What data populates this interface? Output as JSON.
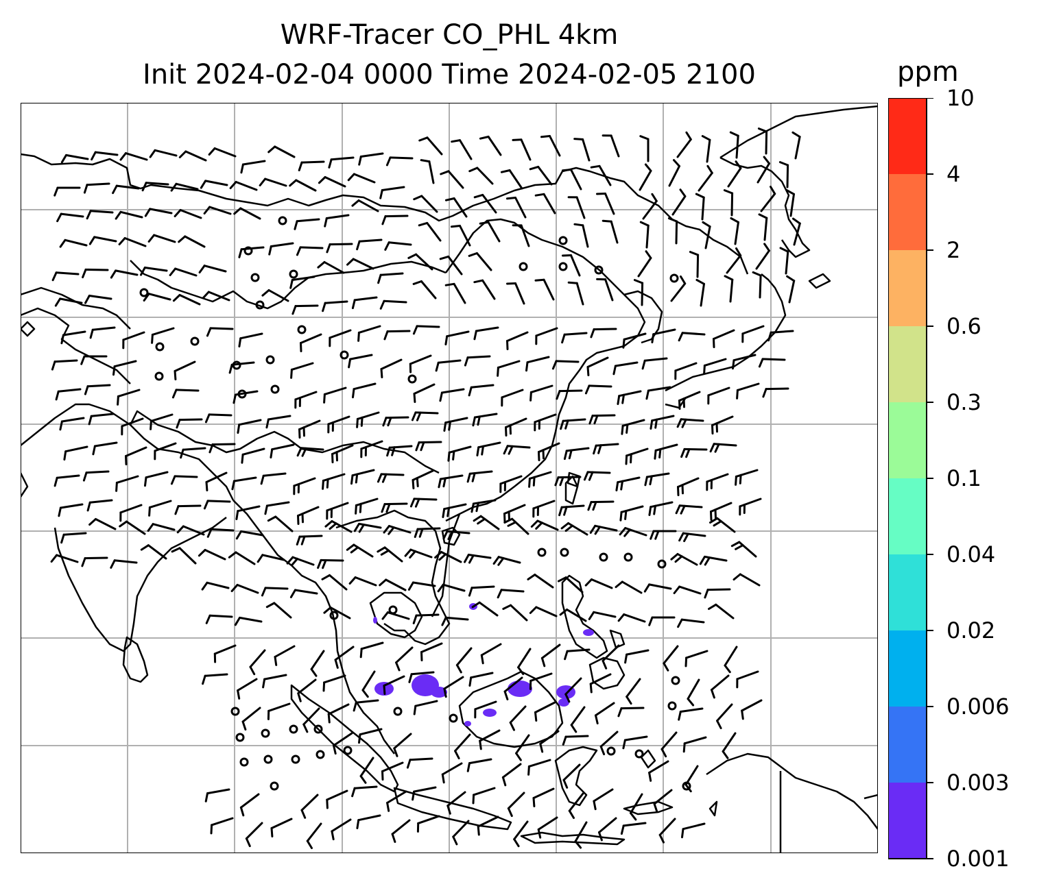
{
  "title": {
    "line1": "WRF-Tracer CO_PHL 4km",
    "line2": "Init 2024-02-04 0000 Time 2024-02-05 2100"
  },
  "colorbar": {
    "unit": "ppm",
    "levels": [
      "0.001",
      "0.003",
      "0.006",
      "0.02",
      "0.04",
      "0.1",
      "0.3",
      "0.6",
      "2",
      "4",
      "10"
    ],
    "colors": [
      "#6a2cf5",
      "#3574f5",
      "#00b0ee",
      "#2fe0d8",
      "#66fdc4",
      "#9bfb98",
      "#d1e38a",
      "#fdb262",
      "#ff6c3b",
      "#ff2a17"
    ]
  },
  "map": {
    "gridline_color": "#b0b0b0",
    "coastline_color": "#000000",
    "tracer_color": "#6a2cf5",
    "wind_barb_color": "#000000"
  }
}
